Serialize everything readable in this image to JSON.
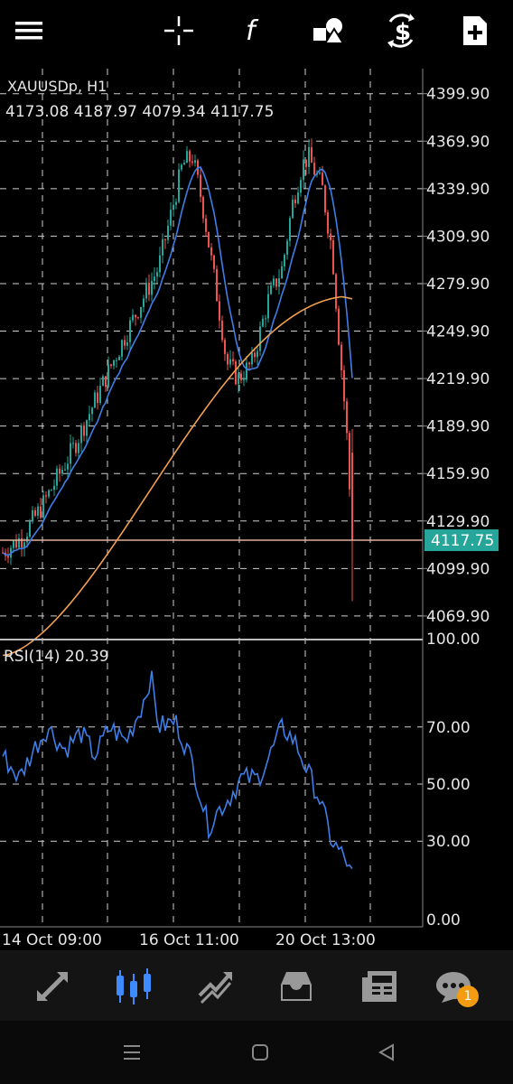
{
  "toolbar": {
    "items": [
      {
        "name": "menu-icon"
      },
      {
        "name": "crosshair-icon"
      },
      {
        "name": "indicators-icon"
      },
      {
        "name": "objects-icon"
      },
      {
        "name": "trade-icon"
      },
      {
        "name": "new-order-icon"
      }
    ]
  },
  "chart": {
    "symbol": "XAUUSDp, H1",
    "ohlc": "4173.08 4187.97 4079.34 4117.75",
    "current_price": "4117.75",
    "price_ticks": [
      "4399.90",
      "4369.90",
      "4339.90",
      "4309.90",
      "4279.90",
      "4249.90",
      "4219.90",
      "4189.90",
      "4159.90",
      "4129.90",
      "4099.90",
      "4069.90"
    ],
    "rsi_label": "RSI(14) 20.39",
    "rsi_ticks": [
      "100.00",
      "70.00",
      "50.00",
      "30.00",
      "0.00"
    ],
    "time_labels": [
      "14 Oct 09:00",
      "16 Oct 11:00",
      "20 Oct 13:00"
    ],
    "colors": {
      "bull": "#26a69a",
      "bear": "#ef5350",
      "ma_fast": "#3d7ee8",
      "ma_slow": "#f0a050",
      "rsi": "#3d7ee8",
      "price_tag": "#26a69a",
      "price_line": "#e0b0a0"
    }
  },
  "chart_data": [
    {
      "type": "line",
      "title": "XAUUSDp, H1",
      "ylim": [
        4055,
        4410
      ],
      "x": [
        "14 Oct 09:00",
        "",
        "",
        "",
        "16 Oct 11:00",
        "",
        "",
        "20 Oct 13:00",
        ""
      ],
      "series": [
        {
          "name": "",
          "values": [
            4105,
            4130,
            4180,
            4225,
            4275,
            4330,
            4250,
            4325,
            4117.75
          ]
        }
      ]
    },
    {
      "type": "line",
      "title": "RSI(14) 20.39",
      "ylim": [
        0,
        100
      ],
      "series": [
        {
          "name": "",
          "values": [
            55,
            62,
            72,
            60,
            68,
            88,
            42,
            70,
            20.39
          ]
        }
      ]
    }
  ],
  "bottom_nav": {
    "items": [
      {
        "name": "quotes-icon"
      },
      {
        "name": "chart-icon",
        "active": true
      },
      {
        "name": "trade-history-icon"
      },
      {
        "name": "history-icon"
      },
      {
        "name": "news-icon"
      },
      {
        "name": "messages-icon"
      }
    ],
    "badge": "1"
  },
  "system_nav": {
    "items": [
      {
        "name": "recents-icon"
      },
      {
        "name": "home-icon"
      },
      {
        "name": "back-icon"
      }
    ]
  }
}
